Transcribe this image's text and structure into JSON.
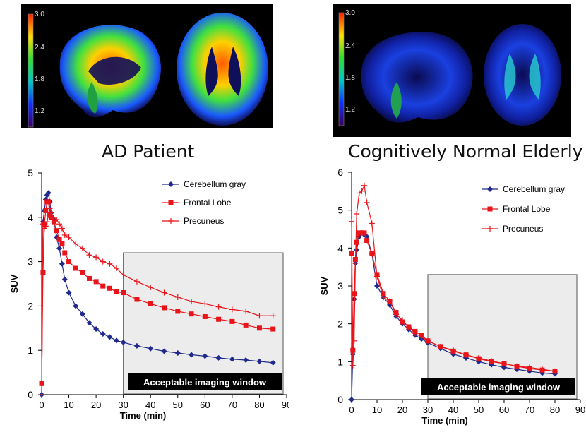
{
  "panels": [
    {
      "caption": "AD Patient",
      "colorbar_ticks": [
        "3.0",
        "2.4",
        "1.8",
        "1.2"
      ]
    },
    {
      "caption": "Cognitively Normal Elderly",
      "colorbar_ticks": [
        "3.0",
        "2.4",
        "1.8",
        "1.2"
      ]
    }
  ],
  "colors": {
    "cerebellum": "#1f2a8c",
    "frontal": "#e8141a",
    "precuneus": "#e8141a",
    "window_fill": "#ececec",
    "window_label_bg": "#000000"
  },
  "chart_data": [
    {
      "type": "line",
      "xlabel": "Time (min)",
      "ylabel": "SUV",
      "xlim": [
        0,
        90
      ],
      "ylim": [
        0,
        5
      ],
      "xticks": [
        0,
        10,
        20,
        30,
        40,
        50,
        60,
        70,
        80,
        90
      ],
      "yticks": [
        0,
        1,
        2,
        3,
        4,
        5
      ],
      "grid": false,
      "legend_position": "top-right",
      "annotation": {
        "label": "Acceptable imaging window",
        "x_range": [
          30,
          90
        ],
        "y_range": [
          0,
          3.2
        ]
      },
      "series": [
        {
          "name": "Cerebellum gray",
          "marker": "diamond",
          "x": [
            0,
            0.5,
            1,
            1.5,
            2,
            2.5,
            3,
            3.5,
            4.5,
            5.5,
            6.5,
            7.5,
            8.5,
            10,
            12.5,
            15,
            17.5,
            20,
            22.5,
            25,
            27.5,
            30,
            35,
            40,
            45,
            50,
            55,
            60,
            65,
            70,
            75,
            80,
            85
          ],
          "y": [
            0,
            3.9,
            4.15,
            4.4,
            4.5,
            4.55,
            4.35,
            4.1,
            3.95,
            3.55,
            3.3,
            2.95,
            2.6,
            2.3,
            2.0,
            1.82,
            1.62,
            1.48,
            1.37,
            1.3,
            1.22,
            1.18,
            1.1,
            1.04,
            0.98,
            0.94,
            0.9,
            0.87,
            0.83,
            0.8,
            0.78,
            0.75,
            0.72
          ]
        },
        {
          "name": "Frontal Lobe",
          "marker": "square",
          "x": [
            0,
            0.5,
            1,
            1.5,
            2,
            2.5,
            3,
            3.5,
            4.5,
            5.5,
            6.5,
            7.5,
            8.5,
            10,
            12.5,
            15,
            17.5,
            20,
            22.5,
            25,
            27.5,
            30,
            35,
            40,
            45,
            50,
            55,
            60,
            65,
            70,
            75,
            80,
            85
          ],
          "y": [
            0.25,
            2.75,
            3.85,
            4.15,
            4.35,
            4.35,
            4.05,
            4.0,
            3.9,
            3.7,
            3.5,
            3.4,
            3.2,
            3.0,
            2.85,
            2.75,
            2.62,
            2.55,
            2.45,
            2.4,
            2.32,
            2.3,
            2.15,
            2.05,
            1.96,
            1.88,
            1.82,
            1.76,
            1.7,
            1.65,
            1.57,
            1.5,
            1.48
          ]
        },
        {
          "name": "Precuneus",
          "marker": "plus",
          "x": [
            0,
            0.5,
            1,
            1.5,
            2,
            2.5,
            3,
            3.5,
            4.5,
            5.5,
            6.5,
            7.5,
            8.5,
            10,
            12.5,
            15,
            17.5,
            20,
            22.5,
            25,
            27.5,
            30,
            35,
            40,
            45,
            50,
            55,
            60,
            65,
            70,
            75,
            80,
            85
          ],
          "y": [
            0,
            3.85,
            3.75,
            3.8,
            3.9,
            4.05,
            4.2,
            4.1,
            4.0,
            3.95,
            3.85,
            3.75,
            3.6,
            3.55,
            3.4,
            3.3,
            3.15,
            3.1,
            3.0,
            2.95,
            2.85,
            2.7,
            2.55,
            2.42,
            2.3,
            2.2,
            2.1,
            2.05,
            1.98,
            1.92,
            1.88,
            1.78,
            1.78
          ]
        }
      ]
    },
    {
      "type": "line",
      "xlabel": "Time (min)",
      "ylabel": "SUV",
      "xlim": [
        0,
        90
      ],
      "ylim": [
        0,
        6
      ],
      "xticks": [
        0,
        10,
        20,
        30,
        40,
        50,
        60,
        70,
        80,
        90
      ],
      "yticks": [
        0,
        1,
        2,
        3,
        4,
        5,
        6
      ],
      "grid": false,
      "legend_position": "top-right",
      "annotation": {
        "label": "Acceptable imaging window",
        "x_range": [
          30,
          90
        ],
        "y_range": [
          0,
          3.3
        ]
      },
      "series": [
        {
          "name": "Cerebellum gray",
          "marker": "diamond",
          "x": [
            0,
            0.5,
            1,
            1.5,
            2,
            3,
            4,
            5,
            6,
            8,
            10,
            12.5,
            15,
            17.5,
            20,
            22.5,
            25,
            27.5,
            30,
            35,
            40,
            45,
            50,
            55,
            60,
            65,
            70,
            75,
            80
          ],
          "y": [
            0,
            1.2,
            2.65,
            3.6,
            3.95,
            4.3,
            4.4,
            4.35,
            4.3,
            3.85,
            3.0,
            2.7,
            2.5,
            2.2,
            2.0,
            1.85,
            1.7,
            1.6,
            1.5,
            1.35,
            1.2,
            1.1,
            1.0,
            0.92,
            0.85,
            0.8,
            0.75,
            0.7,
            0.68
          ]
        },
        {
          "name": "Frontal Lobe",
          "marker": "square",
          "x": [
            0,
            0.5,
            1,
            1.5,
            2,
            3,
            4,
            5,
            6,
            8,
            10,
            12.5,
            15,
            17.5,
            20,
            22.5,
            25,
            27.5,
            30,
            35,
            40,
            45,
            50,
            55,
            60,
            65,
            70,
            75,
            80
          ],
          "y": [
            3.85,
            1.3,
            2.8,
            3.7,
            4.15,
            4.4,
            4.4,
            4.4,
            4.2,
            3.85,
            3.3,
            2.8,
            2.6,
            2.3,
            2.05,
            1.92,
            1.8,
            1.7,
            1.55,
            1.4,
            1.28,
            1.18,
            1.08,
            1.0,
            0.95,
            0.88,
            0.82,
            0.78,
            0.75
          ]
        },
        {
          "name": "Precuneus",
          "marker": "plus",
          "x": [
            0,
            0.5,
            1,
            1.5,
            2,
            3,
            4,
            5,
            6,
            8,
            10,
            12.5,
            15,
            17.5,
            20,
            22.5,
            25,
            27.5,
            30,
            35,
            40,
            45,
            50,
            55,
            60,
            65,
            70,
            75,
            80
          ],
          "y": [
            4.7,
            0.9,
            1.55,
            3.6,
            4.9,
            5.45,
            5.5,
            5.65,
            5.2,
            4.65,
            3.25,
            2.7,
            2.6,
            2.25,
            2.1,
            1.9,
            1.75,
            1.65,
            1.55,
            1.4,
            1.3,
            1.18,
            1.1,
            1.02,
            0.95,
            0.88,
            0.85,
            0.8,
            0.75
          ]
        }
      ]
    }
  ]
}
